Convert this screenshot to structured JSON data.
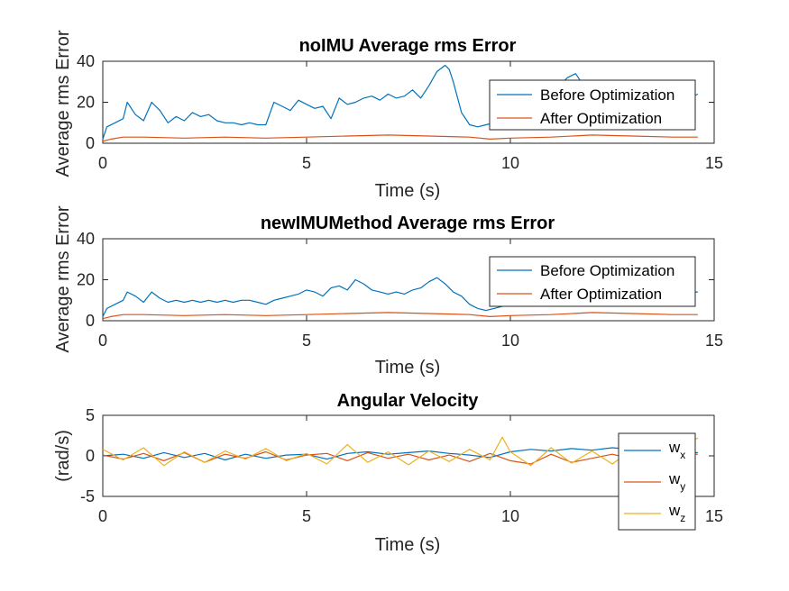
{
  "colors": {
    "before": "#0072BD",
    "after": "#D95319",
    "wx": "#0072BD",
    "wy": "#D95319",
    "wz": "#EDB120",
    "axis": "#262626"
  },
  "chart_data": [
    {
      "type": "line",
      "title": "noIMU Average rms Error",
      "xlabel": "Time (s)",
      "ylabel": "Average rms Error",
      "xlim": [
        0,
        15
      ],
      "ylim": [
        0,
        40
      ],
      "xticks": [
        0,
        5,
        10,
        15
      ],
      "yticks": [
        0,
        20,
        40
      ],
      "legend": {
        "position": "top-right"
      },
      "series": [
        {
          "name": "Before Optimization",
          "color": "#0072BD",
          "x": [
            0,
            0.1,
            0.3,
            0.5,
            0.6,
            0.8,
            1.0,
            1.2,
            1.4,
            1.6,
            1.8,
            2.0,
            2.2,
            2.4,
            2.6,
            2.8,
            3.0,
            3.2,
            3.4,
            3.6,
            3.8,
            4.0,
            4.2,
            4.4,
            4.6,
            4.8,
            5.0,
            5.2,
            5.4,
            5.6,
            5.8,
            6.0,
            6.2,
            6.4,
            6.6,
            6.8,
            7.0,
            7.2,
            7.4,
            7.6,
            7.8,
            8.0,
            8.2,
            8.4,
            8.5,
            8.6,
            8.8,
            9.0,
            9.2,
            9.4,
            9.6,
            9.8,
            10.0,
            10.2,
            10.4,
            10.6,
            10.8,
            11.0,
            11.2,
            11.4,
            11.6,
            11.8,
            12.0,
            12.2,
            12.4,
            12.6,
            12.8,
            13.0,
            13.2,
            13.4,
            13.6,
            13.8,
            14.0,
            14.2,
            14.4,
            14.6
          ],
          "y": [
            2,
            8,
            10,
            12,
            20,
            14,
            11,
            20,
            16,
            10,
            13,
            11,
            15,
            13,
            14,
            11,
            10,
            10,
            9,
            10,
            9,
            9,
            20,
            18,
            16,
            21,
            19,
            17,
            18,
            12,
            22,
            19,
            20,
            22,
            23,
            21,
            24,
            22,
            23,
            26,
            22,
            28,
            35,
            38,
            36,
            30,
            15,
            9,
            8,
            9,
            10,
            12,
            14,
            16,
            18,
            20,
            22,
            25,
            28,
            32,
            34,
            28,
            20,
            18,
            20,
            16,
            14,
            16,
            20,
            22,
            24,
            20,
            18,
            19,
            22,
            24
          ]
        },
        {
          "name": "After Optimization",
          "color": "#D95319",
          "x": [
            0,
            0.2,
            0.5,
            1,
            2,
            3,
            4,
            5,
            6,
            7,
            8,
            9,
            9.5,
            10,
            11,
            12,
            13,
            14,
            14.6
          ],
          "y": [
            1,
            2,
            3,
            3,
            2.5,
            3,
            2.5,
            3,
            3.5,
            4,
            3.5,
            3,
            2,
            2.5,
            3,
            4,
            3.5,
            3,
            3
          ]
        }
      ]
    },
    {
      "type": "line",
      "title": "newIMUMethod Average rms Error",
      "xlabel": "Time (s)",
      "ylabel": "Average rms Error",
      "xlim": [
        0,
        15
      ],
      "ylim": [
        0,
        40
      ],
      "xticks": [
        0,
        5,
        10,
        15
      ],
      "yticks": [
        0,
        20,
        40
      ],
      "legend": {
        "position": "top-right"
      },
      "series": [
        {
          "name": "Before Optimization",
          "color": "#0072BD",
          "x": [
            0,
            0.1,
            0.3,
            0.5,
            0.6,
            0.8,
            1.0,
            1.2,
            1.4,
            1.6,
            1.8,
            2.0,
            2.2,
            2.4,
            2.6,
            2.8,
            3.0,
            3.2,
            3.4,
            3.6,
            3.8,
            4.0,
            4.2,
            4.4,
            4.6,
            4.8,
            5.0,
            5.2,
            5.4,
            5.6,
            5.8,
            6.0,
            6.2,
            6.4,
            6.6,
            6.8,
            7.0,
            7.2,
            7.4,
            7.6,
            7.8,
            8.0,
            8.2,
            8.4,
            8.6,
            8.8,
            9.0,
            9.2,
            9.4,
            9.6,
            9.8,
            10.0,
            10.4,
            10.8,
            11.2,
            11.6,
            12.0,
            12.4,
            12.8,
            13.2,
            13.6,
            14.0,
            14.4,
            14.6
          ],
          "y": [
            2,
            6,
            8,
            10,
            14,
            12,
            9,
            14,
            11,
            9,
            10,
            9,
            10,
            9,
            10,
            9,
            10,
            9,
            10,
            10,
            9,
            8,
            10,
            11,
            12,
            13,
            15,
            14,
            12,
            16,
            17,
            15,
            20,
            18,
            15,
            14,
            13,
            14,
            13,
            15,
            16,
            19,
            21,
            18,
            14,
            12,
            8,
            6,
            5,
            6,
            7,
            8,
            9,
            10,
            12,
            13,
            14,
            12,
            11,
            13,
            14,
            12,
            14,
            14
          ]
        },
        {
          "name": "After Optimization",
          "color": "#D95319",
          "x": [
            0,
            0.2,
            0.5,
            1,
            2,
            3,
            4,
            5,
            6,
            7,
            8,
            9,
            9.5,
            10,
            11,
            12,
            13,
            14,
            14.6
          ],
          "y": [
            1,
            2,
            3,
            3,
            2.5,
            3,
            2.5,
            3,
            3.5,
            4,
            3.5,
            3,
            2,
            2.5,
            3,
            4,
            3.5,
            3,
            3
          ]
        }
      ]
    },
    {
      "type": "line",
      "title": "Angular Velocity",
      "xlabel": "Time (s)",
      "ylabel": "(rad/s)",
      "xlim": [
        0,
        15
      ],
      "ylim": [
        -5,
        5
      ],
      "xticks": [
        0,
        5,
        10,
        15
      ],
      "yticks": [
        -5,
        0,
        5
      ],
      "legend": {
        "position": "right"
      },
      "series": [
        {
          "name": "w",
          "subscript": "x",
          "color": "#0072BD",
          "x": [
            0,
            0.5,
            1,
            1.5,
            2,
            2.5,
            3,
            3.5,
            4,
            4.5,
            5,
            5.5,
            6,
            6.5,
            7,
            7.5,
            8,
            8.5,
            9,
            9.5,
            10,
            10.5,
            11,
            11.5,
            12,
            12.5,
            13,
            13.5,
            14,
            14.6
          ],
          "y": [
            0,
            0.2,
            -0.3,
            0.4,
            -0.2,
            0.3,
            -0.5,
            0.2,
            -0.3,
            0.1,
            0.2,
            -0.4,
            0.3,
            0.5,
            0.2,
            0.4,
            0.6,
            0.3,
            0.1,
            -0.2,
            0.5,
            0.8,
            0.6,
            0.9,
            0.7,
            1.0,
            0.8,
            0.5,
            0.3,
            0.4
          ]
        },
        {
          "name": "w",
          "subscript": "y",
          "color": "#D95319",
          "x": [
            0,
            0.5,
            1,
            1.5,
            2,
            2.5,
            3,
            3.5,
            4,
            4.5,
            5,
            5.5,
            6,
            6.5,
            7,
            7.5,
            8,
            8.5,
            9,
            9.5,
            10,
            10.5,
            11,
            11.5,
            12,
            12.5,
            13,
            13.5,
            14,
            14.6
          ],
          "y": [
            0.1,
            -0.4,
            0.3,
            -0.6,
            0.4,
            -0.8,
            0.2,
            -0.3,
            0.5,
            -0.5,
            0.1,
            0.3,
            -0.6,
            0.4,
            -0.3,
            0.2,
            -0.5,
            0.1,
            -0.7,
            0.3,
            -0.6,
            -1.0,
            0.2,
            -0.8,
            -0.3,
            0.2,
            -0.4,
            0.5,
            0.1,
            0.2
          ]
        },
        {
          "name": "w",
          "subscript": "z",
          "color": "#EDB120",
          "x": [
            0,
            0.5,
            1,
            1.5,
            2,
            2.5,
            3,
            3.5,
            4,
            4.5,
            5,
            5.5,
            6,
            6.5,
            7,
            7.5,
            8,
            8.5,
            9,
            9.5,
            9.8,
            10,
            10.5,
            11,
            11.5,
            12,
            12.5,
            13,
            13.5,
            14,
            14.6
          ],
          "y": [
            0.8,
            -0.5,
            1.0,
            -1.2,
            0.5,
            -0.8,
            0.6,
            -0.4,
            0.9,
            -0.6,
            0.3,
            -1.0,
            1.4,
            -0.8,
            0.5,
            -1.1,
            0.6,
            -0.7,
            0.8,
            -0.5,
            2.3,
            0.5,
            -1.2,
            1.0,
            -0.9,
            0.6,
            -1.0,
            0.8,
            -0.6,
            0.9,
            2.2
          ]
        }
      ]
    }
  ]
}
